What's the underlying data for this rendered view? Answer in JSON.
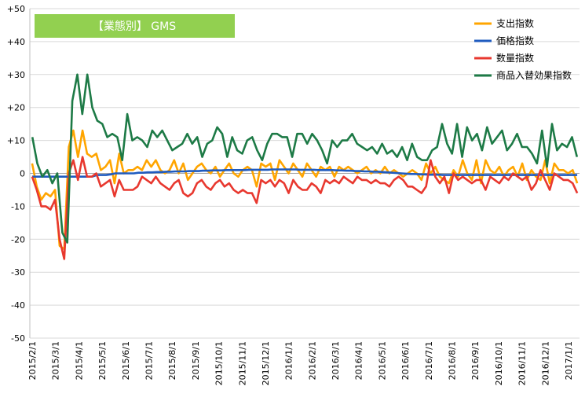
{
  "chart_data": {
    "type": "line",
    "title": "【業態別】 GMS",
    "title_box_color": "#92D050",
    "ylim": [
      -50,
      50
    ],
    "y_ticks": [
      "+50",
      "+40",
      "+30",
      "+20",
      "+10",
      "0",
      "-10",
      "-20",
      "-30",
      "-40",
      "-50"
    ],
    "x_tick_labels": [
      "2015/2/1",
      "2015/3/1",
      "2015/4/1",
      "2015/5/1",
      "2015/6/1",
      "2015/7/1",
      "2015/8/1",
      "2015/9/1",
      "2015/10/1",
      "2015/11/1",
      "2015/12/1",
      "2016/1/1",
      "2016/2/1",
      "2016/3/1",
      "2016/4/1",
      "2016/5/1",
      "2016/6/1",
      "2016/7/1",
      "2016/8/1",
      "2016/9/1",
      "2016/10/1",
      "2016/11/1",
      "2016/12/1",
      "2017/1/1"
    ],
    "grid": "horizontal",
    "legend_position": "top-right",
    "series": [
      {
        "name": "支出指数",
        "color": "#FFA500",
        "values": [
          3,
          -4,
          -8,
          -6,
          -7,
          -5,
          -22,
          -23,
          8,
          13,
          5,
          13,
          6,
          5,
          6,
          1,
          2,
          4,
          -3,
          6,
          0,
          1,
          1,
          2,
          1,
          4,
          2,
          4,
          1,
          0,
          1,
          4,
          0,
          3,
          -2,
          0,
          2,
          3,
          1,
          0,
          2,
          -1,
          1,
          3,
          0,
          -1,
          1,
          2,
          1,
          -4,
          3,
          2,
          3,
          -2,
          4,
          2,
          0,
          3,
          1,
          -1,
          3,
          1,
          -1,
          2,
          1,
          2,
          -1,
          2,
          1,
          2,
          1,
          0,
          1,
          2,
          0,
          1,
          0,
          2,
          0,
          1,
          0,
          -1,
          0,
          1,
          0,
          -2,
          3,
          0,
          2,
          -1,
          -2,
          -3,
          1,
          -1,
          4,
          0,
          -2,
          4,
          -3,
          4,
          1,
          0,
          2,
          -1,
          1,
          2,
          -1,
          3,
          -2,
          1,
          -1,
          -2,
          4,
          -3,
          3,
          1,
          1,
          0,
          1,
          -3
        ]
      },
      {
        "name": "価格指数",
        "color": "#1F5BBF",
        "values": [
          -1,
          -1,
          -1,
          -1,
          -1,
          -1,
          -1,
          -1,
          -1,
          -1,
          -1,
          -1,
          -1,
          -1,
          -0.5,
          -0.5,
          -0.5,
          -0.3,
          0,
          0,
          0,
          0,
          0,
          0.2,
          0.2,
          0.3,
          0.3,
          0.4,
          0.4,
          0.5,
          0.5,
          0.6,
          0.6,
          0.6,
          0.7,
          0.7,
          0.7,
          0.8,
          0.8,
          0.9,
          0.9,
          0.9,
          1,
          1,
          1,
          1,
          1,
          1.1,
          1.1,
          1.1,
          1.1,
          1.1,
          1.2,
          1.2,
          1.2,
          1.2,
          1.2,
          1.2,
          1.1,
          1.1,
          1.1,
          1.1,
          1,
          1,
          1,
          1,
          0.9,
          0.9,
          0.8,
          0.8,
          0.7,
          0.7,
          0.6,
          0.6,
          0.5,
          0.5,
          0.4,
          0.3,
          0.2,
          0.1,
          0,
          -0.1,
          -0.2,
          -0.2,
          -0.3,
          -0.3,
          -0.4,
          -0.4,
          -0.4,
          -0.5,
          -0.5,
          -0.5,
          -0.5,
          -0.5,
          -0.5,
          -0.5,
          -0.5,
          -0.5,
          -0.5,
          -0.5,
          -0.5,
          -0.5,
          -0.5,
          -0.5,
          -0.5,
          -0.5,
          -0.5,
          -0.5,
          -0.5,
          -0.5,
          -0.5,
          -0.5,
          -0.5,
          -0.5,
          -0.5,
          -0.5,
          -0.5,
          -0.5,
          -0.5
        ]
      },
      {
        "name": "数量指数",
        "color": "#E8382F",
        "values": [
          -1,
          -5,
          -10,
          -10,
          -11,
          -8,
          -20,
          -26,
          0,
          4,
          -2,
          5,
          -1,
          -1,
          0,
          -4,
          -3,
          -2,
          -7,
          -2,
          -5,
          -5,
          -5,
          -4,
          -1,
          -2,
          -3,
          -1,
          -3,
          -4,
          -5,
          -3,
          -2,
          -6,
          -7,
          -6,
          -3,
          -2,
          -4,
          -5,
          -3,
          -2,
          -4,
          -3,
          -5,
          -6,
          -5,
          -6,
          -6,
          -9,
          -2,
          -3,
          -2,
          -4,
          -2,
          -3,
          -6,
          -2,
          -4,
          -5,
          -5,
          -3,
          -4,
          -6,
          -2,
          -3,
          -2,
          -3,
          -1,
          -2,
          -3,
          -1,
          -2,
          -2,
          -3,
          -2,
          -3,
          -3,
          -4,
          -2,
          -1,
          -2,
          -4,
          -4,
          -5,
          -6,
          -4,
          4,
          -1,
          -3,
          -1,
          -6,
          0,
          -2,
          -1,
          -2,
          -3,
          -2,
          -2,
          -5,
          -1,
          -2,
          -3,
          -1,
          -2,
          0,
          -1,
          -2,
          -1,
          -5,
          -3,
          1,
          -2,
          -5,
          0,
          -1,
          -2,
          -2,
          -3,
          -6
        ]
      },
      {
        "name": "商品入替効果指数",
        "color": "#1D7A46",
        "values": [
          11,
          3,
          -1,
          1,
          -3,
          0,
          -18,
          -21,
          22,
          30,
          18,
          30,
          20,
          16,
          15,
          11,
          12,
          11,
          4,
          18,
          10,
          11,
          10,
          8,
          13,
          11,
          13,
          10,
          7,
          8,
          9,
          12,
          9,
          11,
          5,
          9,
          10,
          14,
          12,
          5,
          11,
          7,
          6,
          10,
          11,
          7,
          4,
          9,
          12,
          12,
          11,
          11,
          5,
          12,
          12,
          9,
          12,
          10,
          7,
          3,
          10,
          8,
          10,
          10,
          12,
          9,
          8,
          7,
          8,
          6,
          9,
          6,
          7,
          5,
          8,
          4,
          9,
          5,
          4,
          4,
          7,
          8,
          15,
          9,
          6,
          15,
          5,
          14,
          10,
          12,
          7,
          14,
          9,
          11,
          13,
          7,
          9,
          12,
          8,
          8,
          6,
          3,
          13,
          2,
          15,
          7,
          9,
          8,
          11,
          5
        ]
      }
    ]
  }
}
